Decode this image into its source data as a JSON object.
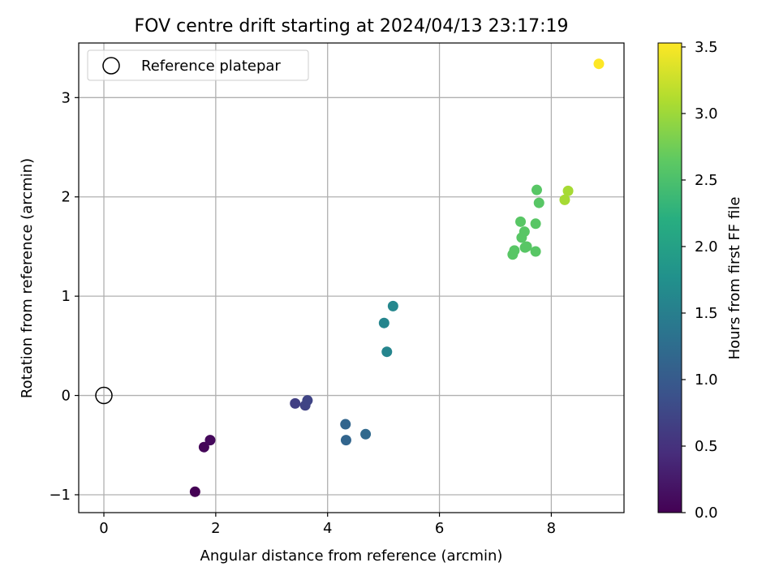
{
  "chart_data": {
    "type": "scatter",
    "title": "FOV centre drift starting at 2024/04/13 23:17:19",
    "xlabel": "Angular distance from reference (arcmin)",
    "ylabel": "Rotation from reference (arcmin)",
    "xlim": [
      -0.45,
      9.3
    ],
    "ylim": [
      -1.18,
      3.55
    ],
    "xticks": [
      0,
      2,
      4,
      6,
      8
    ],
    "yticks": [
      -1,
      0,
      1,
      2,
      3
    ],
    "xtick_labels": [
      "0",
      "2",
      "4",
      "6",
      "8"
    ],
    "ytick_labels": [
      "−1",
      "0",
      "1",
      "2",
      "3"
    ],
    "grid": true,
    "legend": {
      "position": "top-left",
      "entries": [
        "Reference platepar"
      ]
    },
    "reference_point": {
      "name": "Reference platepar",
      "x": 0,
      "y": 0,
      "marker": "hollow-circle"
    },
    "colorbar": {
      "label": "Hours from first FF file",
      "colormap": "viridis",
      "range": [
        0.0,
        3.53
      ],
      "ticks": [
        0.0,
        0.5,
        1.0,
        1.5,
        2.0,
        2.5,
        3.0,
        3.5
      ],
      "tick_labels": [
        "0.0",
        "0.5",
        "1.0",
        "1.5",
        "2.0",
        "2.5",
        "3.0",
        "3.5"
      ]
    },
    "points": [
      {
        "x": 1.63,
        "y": -0.97,
        "hours": 0.0
      },
      {
        "x": 1.79,
        "y": -0.52,
        "hours": 0.05
      },
      {
        "x": 1.9,
        "y": -0.45,
        "hours": 0.08
      },
      {
        "x": 3.42,
        "y": -0.08,
        "hours": 0.65
      },
      {
        "x": 3.6,
        "y": -0.1,
        "hours": 0.7
      },
      {
        "x": 3.64,
        "y": -0.05,
        "hours": 0.72
      },
      {
        "x": 4.32,
        "y": -0.29,
        "hours": 1.15
      },
      {
        "x": 4.33,
        "y": -0.45,
        "hours": 1.15
      },
      {
        "x": 4.68,
        "y": -0.39,
        "hours": 1.2
      },
      {
        "x": 5.01,
        "y": 0.73,
        "hours": 1.6
      },
      {
        "x": 5.06,
        "y": 0.44,
        "hours": 1.6
      },
      {
        "x": 5.17,
        "y": 0.9,
        "hours": 1.62
      },
      {
        "x": 7.31,
        "y": 1.42,
        "hours": 2.6
      },
      {
        "x": 7.34,
        "y": 1.46,
        "hours": 2.6
      },
      {
        "x": 7.45,
        "y": 1.75,
        "hours": 2.6
      },
      {
        "x": 7.47,
        "y": 1.59,
        "hours": 2.6
      },
      {
        "x": 7.52,
        "y": 1.65,
        "hours": 2.6
      },
      {
        "x": 7.53,
        "y": 1.49,
        "hours": 2.6
      },
      {
        "x": 7.56,
        "y": 1.5,
        "hours": 2.6
      },
      {
        "x": 7.72,
        "y": 1.45,
        "hours": 2.6
      },
      {
        "x": 7.72,
        "y": 1.73,
        "hours": 2.6
      },
      {
        "x": 7.74,
        "y": 2.07,
        "hours": 2.6
      },
      {
        "x": 7.78,
        "y": 1.94,
        "hours": 2.6
      },
      {
        "x": 8.24,
        "y": 1.97,
        "hours": 3.05
      },
      {
        "x": 8.3,
        "y": 2.06,
        "hours": 3.05
      },
      {
        "x": 8.85,
        "y": 3.34,
        "hours": 3.53
      }
    ]
  }
}
